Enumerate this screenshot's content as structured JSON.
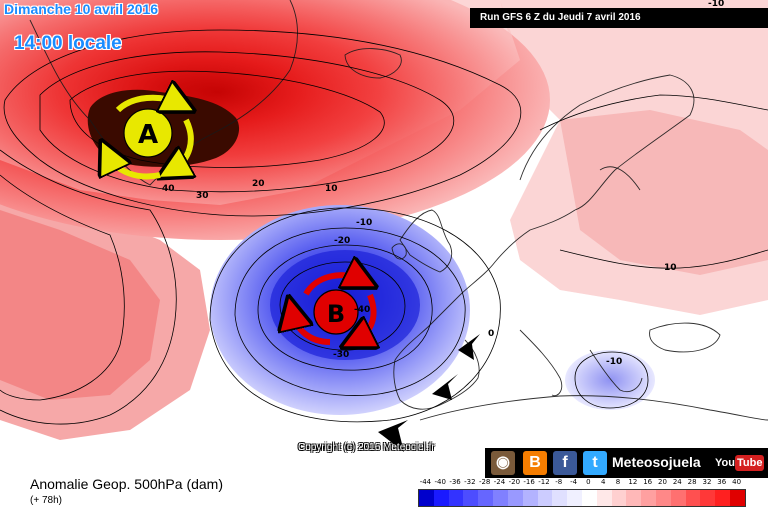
{
  "header": {
    "date": "Dimanche 10 avril 2016",
    "time": "14:00 locale",
    "run": "Run GFS 6 Z du Jeudi 7 avril 2016"
  },
  "footer": {
    "field": "Anomalie Geop. 500hPa (dam)",
    "lead": "(+ 78h)",
    "copyright": "Copyright (c) 2016 Meteociel.fr",
    "brand": "Meteosojuela"
  },
  "map": {
    "high_letter": "A",
    "low_letter": "B",
    "contour_labels": [
      "40",
      "30",
      "20",
      "10",
      "-10",
      "-20",
      "-40",
      "-30",
      "0",
      "-10",
      "10",
      "-10"
    ]
  },
  "legend": {
    "values": [
      "-44",
      "-40",
      "-36",
      "-32",
      "-28",
      "-24",
      "-20",
      "-16",
      "-12",
      "-8",
      "-4",
      "0",
      "4",
      "8",
      "12",
      "16",
      "20",
      "24",
      "28",
      "32",
      "36",
      "40"
    ],
    "colors": [
      "#0000cc",
      "#1a1aff",
      "#3333ff",
      "#4d4dff",
      "#6666ff",
      "#8080ff",
      "#9999ff",
      "#b3b3ff",
      "#ccccff",
      "#e0e0ff",
      "#f0f0ff",
      "#ffffff",
      "#ffe8e8",
      "#ffd0d0",
      "#ffb8b8",
      "#ffa0a0",
      "#ff8888",
      "#ff7070",
      "#ff5050",
      "#ff3838",
      "#ff2020",
      "#e00000"
    ]
  },
  "colors": {
    "header_text": "#1a8cff",
    "high_core": "#3a0a00",
    "high_arrow": "#e8e800",
    "low_arrow": "#e00000"
  },
  "icons": [
    "instagram-icon",
    "blogger-icon",
    "facebook-icon",
    "twitter-icon",
    "youtube-icon"
  ]
}
